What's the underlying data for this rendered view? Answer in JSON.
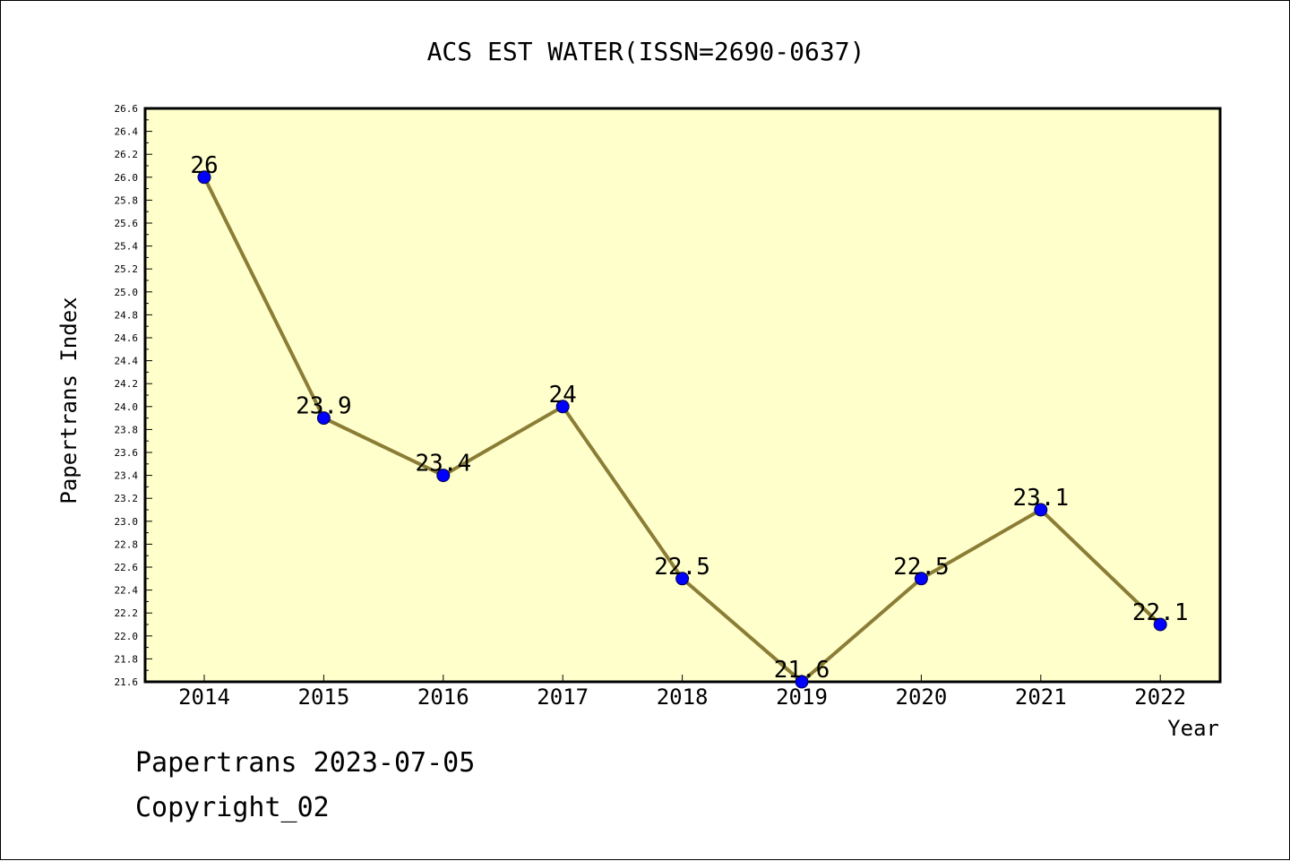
{
  "colors": {
    "plot_background": "#ffffcc",
    "line": "#8b7d35",
    "marker": "#0000ff",
    "axis": "#000000",
    "text": "#000000"
  },
  "footer": {
    "date_line": "Papertrans 2023-07-05",
    "copyright": "Copyright_02"
  },
  "chart_data": {
    "type": "line",
    "title": "ACS EST WATER(ISSN=2690-0637)",
    "xlabel": "Year",
    "ylabel": "Papertrans Index",
    "categories": [
      "2014",
      "2015",
      "2016",
      "2017",
      "2018",
      "2019",
      "2020",
      "2021",
      "2022"
    ],
    "series": [
      {
        "values": [
          26,
          23.9,
          23.4,
          24,
          22.5,
          21.6,
          22.5,
          23.1,
          22.1
        ],
        "labels": [
          "26",
          "23.9",
          "23.4",
          "24",
          "22.5",
          "21.6",
          "22.5",
          "23.1",
          "22.1"
        ]
      }
    ],
    "ylim": [
      21.6,
      26.6
    ],
    "yticks": [
      "21.6",
      "21.8",
      "22.0",
      "22.2",
      "22.4",
      "22.6",
      "22.8",
      "23.0",
      "23.2",
      "23.4",
      "23.6",
      "23.8",
      "24.0",
      "24.2",
      "24.4",
      "24.6",
      "24.8",
      "25.0",
      "25.2",
      "25.4",
      "25.6",
      "25.8",
      "26.0",
      "26.2",
      "26.4",
      "26.6"
    ],
    "grid": false,
    "legend": "none"
  }
}
